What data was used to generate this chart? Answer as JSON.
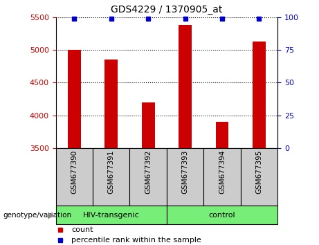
{
  "title": "GDS4229 / 1370905_at",
  "samples": [
    "GSM677390",
    "GSM677391",
    "GSM677392",
    "GSM677393",
    "GSM677394",
    "GSM677395"
  ],
  "counts": [
    5000,
    4850,
    4200,
    5380,
    3900,
    5130
  ],
  "percentile_ranks": [
    99,
    99,
    99,
    99,
    99,
    99
  ],
  "ylim_left": [
    3500,
    5500
  ],
  "ylim_right": [
    0,
    100
  ],
  "yticks_left": [
    3500,
    4000,
    4500,
    5000,
    5500
  ],
  "yticks_right": [
    0,
    25,
    50,
    75,
    100
  ],
  "bar_color": "#cc0000",
  "percentile_color": "#0000cc",
  "groups": [
    {
      "label": "HIV-transgenic",
      "start": 0,
      "end": 2
    },
    {
      "label": "control",
      "start": 3,
      "end": 5
    }
  ],
  "group_color": "#77ee77",
  "label_area_color": "#cccccc",
  "genotype_label": "genotype/variation",
  "legend_count_label": "count",
  "legend_percentile_label": "percentile rank within the sample",
  "bar_width": 0.35,
  "percentile_marker_size": 5
}
